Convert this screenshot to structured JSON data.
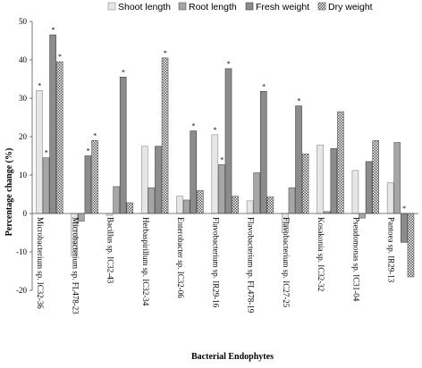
{
  "chart_data": {
    "type": "bar",
    "title": "",
    "xlabel": "Bacterial Endophytes",
    "ylabel": "Percentage change (%)",
    "ylim": [
      -20,
      50
    ],
    "yticks": [
      -20,
      -10,
      0,
      10,
      20,
      30,
      40,
      50
    ],
    "grid": false,
    "legend_position": "top-right",
    "categories": [
      "Microbacterium sp. IC32-36",
      "Microbacterium sp. FL478-23",
      "Bacillus sp. IC32-43",
      "Herbaspirillum sp. IC32-34",
      "Enterobacter sp. IC32-06",
      "Flavobacterium sp. IR29-16",
      "Flavobacterium sp. FL478-19",
      "Flavobacterium sp. IC27-25",
      "Kosakonia sp. IC32-32",
      "Pseudomonas sp. IC31-04",
      "Pantoea sp. IR29-13"
    ],
    "series": [
      {
        "name": "Shoot length",
        "values": [
          32.0,
          -11.0,
          -0.5,
          17.5,
          4.5,
          20.5,
          3.3,
          -5.0,
          17.8,
          11.2,
          8.0
        ]
      },
      {
        "name": "Root length",
        "values": [
          14.5,
          -2.0,
          7.0,
          6.7,
          3.5,
          12.7,
          10.6,
          6.7,
          0.5,
          -1.2,
          18.5
        ]
      },
      {
        "name": "Fresh weight",
        "values": [
          46.5,
          15.0,
          35.5,
          17.5,
          21.5,
          37.7,
          31.8,
          28.0,
          16.9,
          13.5,
          -7.5
        ]
      },
      {
        "name": "Dry weight",
        "values": [
          39.5,
          19.0,
          2.8,
          40.5,
          6.0,
          4.5,
          4.3,
          15.5,
          26.5,
          19.0,
          -16.5
        ]
      }
    ],
    "significance_marks": [
      [
        true,
        false,
        false,
        false,
        false,
        true,
        false,
        false,
        false,
        false,
        false
      ],
      [
        true,
        false,
        false,
        false,
        false,
        true,
        false,
        false,
        false,
        false,
        false
      ],
      [
        true,
        true,
        true,
        false,
        true,
        true,
        true,
        true,
        false,
        false,
        true
      ],
      [
        true,
        true,
        false,
        true,
        false,
        false,
        false,
        false,
        false,
        false,
        false
      ]
    ],
    "significance_symbol": "*"
  }
}
